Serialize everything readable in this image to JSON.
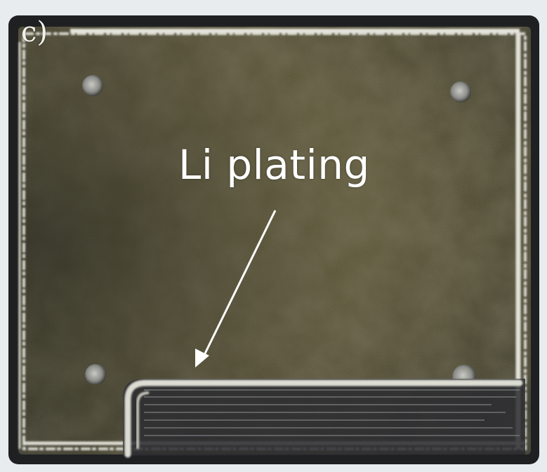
{
  "figure": {
    "panel_label": "c)",
    "annotation": {
      "text": "Li plating"
    }
  },
  "colors": {
    "background": "#e9ecef",
    "frame": "#1f2022",
    "plate": "#4e4a33",
    "plating_edge": "#d9d9d0",
    "annotation_text": "#ffffff"
  },
  "icons": {
    "annotation_arrow": "arrow-icon"
  }
}
